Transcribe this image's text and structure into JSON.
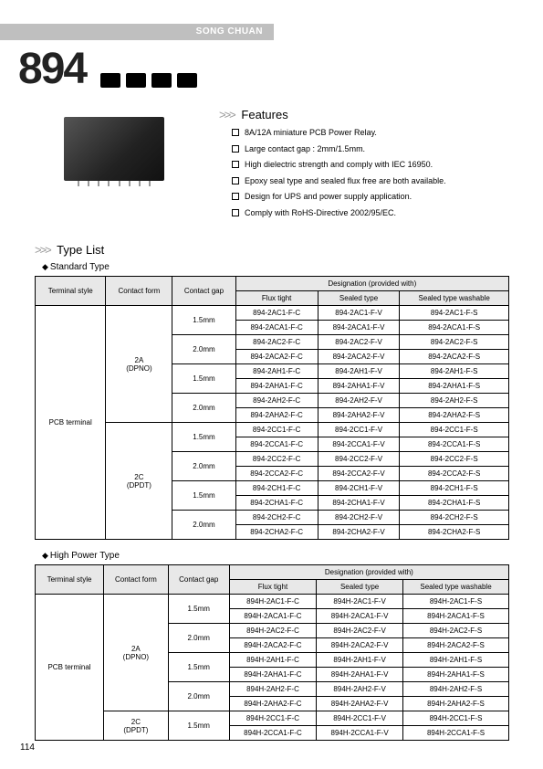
{
  "header": {
    "brand": "SONG CHUAN"
  },
  "model": "894",
  "features": {
    "title": "Features",
    "items": [
      "8A/12A miniature PCB Power Relay.",
      "Large contact gap : 2mm/1.5mm.",
      "High dielectric strength and comply with IEC 16950.",
      "Epoxy seal type and sealed flux free are both available.",
      "Design for UPS and power supply application.",
      "Comply with RoHS-Directive 2002/95/EC."
    ]
  },
  "typeList": {
    "title": "Type List",
    "standardTitle": "Standard Type",
    "highPowerTitle": "High Power Type"
  },
  "tableHeaders": {
    "terminalStyle": "Terminal style",
    "contactForm": "Contact form",
    "contactGap": "Contact gap",
    "designation": "Designation (provided with)",
    "fluxTight": "Flux tight",
    "sealedType": "Sealed type",
    "sealedWashable": "Sealed type washable"
  },
  "standardTable": {
    "terminal": "PCB terminal",
    "contactForms": [
      {
        "label1": "2A",
        "label2": "(DPNO)"
      },
      {
        "label1": "2C",
        "label2": "(DPDT)"
      }
    ],
    "gaps": [
      "1.5mm",
      "2.0mm",
      "1.5mm",
      "2.0mm",
      "1.5mm",
      "2.0mm",
      "1.5mm",
      "2.0mm"
    ],
    "rows": [
      [
        "894-2AC1-F-C",
        "894-2AC1-F-V",
        "894-2AC1-F-S"
      ],
      [
        "894-2ACA1-F-C",
        "894-2ACA1-F-V",
        "894-2ACA1-F-S"
      ],
      [
        "894-2AC2-F-C",
        "894-2AC2-F-V",
        "894-2AC2-F-S"
      ],
      [
        "894-2ACA2-F-C",
        "894-2ACA2-F-V",
        "894-2ACA2-F-S"
      ],
      [
        "894-2AH1-F-C",
        "894-2AH1-F-V",
        "894-2AH1-F-S"
      ],
      [
        "894-2AHA1-F-C",
        "894-2AHA1-F-V",
        "894-2AHA1-F-S"
      ],
      [
        "894-2AH2-F-C",
        "894-2AH2-F-V",
        "894-2AH2-F-S"
      ],
      [
        "894-2AHA2-F-C",
        "894-2AHA2-F-V",
        "894-2AHA2-F-S"
      ],
      [
        "894-2CC1-F-C",
        "894-2CC1-F-V",
        "894-2CC1-F-S"
      ],
      [
        "894-2CCA1-F-C",
        "894-2CCA1-F-V",
        "894-2CCA1-F-S"
      ],
      [
        "894-2CC2-F-C",
        "894-2CC2-F-V",
        "894-2CC2-F-S"
      ],
      [
        "894-2CCA2-F-C",
        "894-2CCA2-F-V",
        "894-2CCA2-F-S"
      ],
      [
        "894-2CH1-F-C",
        "894-2CH1-F-V",
        "894-2CH1-F-S"
      ],
      [
        "894-2CHA1-F-C",
        "894-2CHA1-F-V",
        "894-2CHA1-F-S"
      ],
      [
        "894-2CH2-F-C",
        "894-2CH2-F-V",
        "894-2CH2-F-S"
      ],
      [
        "894-2CHA2-F-C",
        "894-2CHA2-F-V",
        "894-2CHA2-F-S"
      ]
    ]
  },
  "highPowerTable": {
    "terminal": "PCB terminal",
    "contactForms": [
      {
        "label1": "2A",
        "label2": "(DPNO)"
      },
      {
        "label1": "2C",
        "label2": "(DPDT)"
      }
    ],
    "gaps": [
      "1.5mm",
      "2.0mm",
      "1.5mm",
      "2.0mm",
      "1.5mm"
    ],
    "rows": [
      [
        "894H-2AC1-F-C",
        "894H-2AC1-F-V",
        "894H-2AC1-F-S"
      ],
      [
        "894H-2ACA1-F-C",
        "894H-2ACA1-F-V",
        "894H-2ACA1-F-S"
      ],
      [
        "894H-2AC2-F-C",
        "894H-2AC2-F-V",
        "894H-2AC2-F-S"
      ],
      [
        "894H-2ACA2-F-C",
        "894H-2ACA2-F-V",
        "894H-2ACA2-F-S"
      ],
      [
        "894H-2AH1-F-C",
        "894H-2AH1-F-V",
        "894H-2AH1-F-S"
      ],
      [
        "894H-2AHA1-F-C",
        "894H-2AHA1-F-V",
        "894H-2AHA1-F-S"
      ],
      [
        "894H-2AH2-F-C",
        "894H-2AH2-F-V",
        "894H-2AH2-F-S"
      ],
      [
        "894H-2AHA2-F-C",
        "894H-2AHA2-F-V",
        "894H-2AHA2-F-S"
      ],
      [
        "894H-2CC1-F-C",
        "894H-2CC1-F-V",
        "894H-2CC1-F-S"
      ],
      [
        "894H-2CCA1-F-C",
        "894H-2CCA1-F-V",
        "894H-2CCA1-F-S"
      ]
    ]
  },
  "page": "114"
}
